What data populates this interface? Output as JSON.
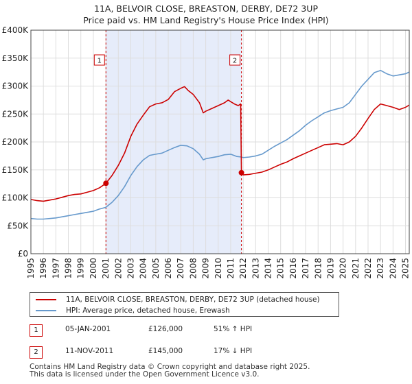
{
  "chart_data": {
    "type": "line",
    "title": [
      "11A, BELVOIR CLOSE, BREASTON, DERBY, DE72 3UP",
      "Price paid vs. HM Land Registry's House Price Index (HPI)"
    ],
    "ylim": [
      0,
      400000
    ],
    "yticks": [
      0,
      50000,
      100000,
      150000,
      200000,
      250000,
      300000,
      350000,
      400000
    ],
    "ytick_labels": [
      "£0",
      "£50K",
      "£100K",
      "£150K",
      "£200K",
      "£250K",
      "£300K",
      "£350K",
      "£400K"
    ],
    "xlim": [
      1995.0,
      2025.3
    ],
    "xticks": [
      1995,
      1996,
      1997,
      1998,
      1999,
      2000,
      2001,
      2002,
      2003,
      2004,
      2005,
      2006,
      2007,
      2008,
      2009,
      2010,
      2011,
      2012,
      2013,
      2014,
      2015,
      2016,
      2017,
      2018,
      2019,
      2020,
      2021,
      2022,
      2023,
      2024,
      2025
    ],
    "grid": true,
    "shaded_period": [
      2001.01,
      2011.86
    ],
    "series": [
      {
        "name": "11A, BELVOIR CLOSE, BREASTON, DERBY, DE72 3UP (detached house)",
        "color": "#cc0000",
        "x": [
          1995.0,
          1995.5,
          1996.0,
          1996.5,
          1997.0,
          1997.5,
          1998.0,
          1998.5,
          1999.0,
          1999.5,
          2000.0,
          2000.5,
          2001.01,
          2001.5,
          2002.0,
          2002.5,
          2003.0,
          2003.5,
          2004.0,
          2004.5,
          2005.0,
          2005.5,
          2006.0,
          2006.5,
          2007.0,
          2007.3,
          2007.6,
          2008.0,
          2008.5,
          2008.8,
          2009.0,
          2009.5,
          2010.0,
          2010.5,
          2010.8,
          2011.0,
          2011.3,
          2011.6,
          2011.8,
          2011.86,
          2012.0,
          2012.5,
          2013.0,
          2013.5,
          2014.0,
          2014.5,
          2015.0,
          2015.5,
          2016.0,
          2016.5,
          2017.0,
          2017.5,
          2018.0,
          2018.5,
          2019.0,
          2019.5,
          2020.0,
          2020.5,
          2021.0,
          2021.5,
          2022.0,
          2022.5,
          2023.0,
          2023.5,
          2024.0,
          2024.5,
          2025.0,
          2025.3
        ],
        "values": [
          97000,
          95000,
          94000,
          96000,
          98000,
          101000,
          104000,
          106000,
          107000,
          110000,
          113000,
          118000,
          126000,
          140000,
          158000,
          180000,
          210000,
          232000,
          248000,
          263000,
          268000,
          270000,
          276000,
          290000,
          296000,
          299000,
          292000,
          285000,
          270000,
          252000,
          255000,
          260000,
          265000,
          270000,
          275000,
          272000,
          268000,
          265000,
          268000,
          145000,
          141000,
          142000,
          144000,
          146000,
          150000,
          155000,
          160000,
          164000,
          170000,
          175000,
          180000,
          185000,
          190000,
          195000,
          196000,
          197000,
          195000,
          200000,
          210000,
          225000,
          242000,
          258000,
          268000,
          265000,
          262000,
          258000,
          262000,
          266000
        ]
      },
      {
        "name": "HPI: Average price, detached house, Erewash",
        "color": "#6699cc",
        "x": [
          1995.0,
          1995.5,
          1996.0,
          1996.5,
          1997.0,
          1997.5,
          1998.0,
          1998.5,
          1999.0,
          1999.5,
          2000.0,
          2000.5,
          2001.0,
          2001.5,
          2002.0,
          2002.5,
          2003.0,
          2003.5,
          2004.0,
          2004.5,
          2005.0,
          2005.5,
          2006.0,
          2006.5,
          2007.0,
          2007.5,
          2008.0,
          2008.5,
          2008.8,
          2009.0,
          2009.5,
          2010.0,
          2010.5,
          2011.0,
          2011.5,
          2011.86,
          2012.0,
          2012.5,
          2013.0,
          2013.5,
          2014.0,
          2014.5,
          2015.0,
          2015.5,
          2016.0,
          2016.5,
          2017.0,
          2017.5,
          2018.0,
          2018.5,
          2019.0,
          2019.5,
          2020.0,
          2020.5,
          2021.0,
          2021.5,
          2022.0,
          2022.5,
          2023.0,
          2023.5,
          2024.0,
          2024.5,
          2025.0,
          2025.3
        ],
        "values": [
          63000,
          62000,
          62000,
          63000,
          64000,
          66000,
          68000,
          70000,
          72000,
          74000,
          76000,
          80000,
          83000,
          92000,
          104000,
          120000,
          140000,
          156000,
          168000,
          176000,
          178000,
          180000,
          185000,
          190000,
          194000,
          193000,
          188000,
          178000,
          168000,
          170000,
          172000,
          174000,
          177000,
          178000,
          174000,
          173000,
          172000,
          173000,
          175000,
          178000,
          185000,
          192000,
          198000,
          204000,
          212000,
          220000,
          230000,
          238000,
          245000,
          252000,
          256000,
          259000,
          262000,
          270000,
          285000,
          300000,
          312000,
          324000,
          328000,
          322000,
          318000,
          320000,
          322000,
          325000
        ]
      }
    ],
    "sales": [
      {
        "id": "1",
        "date": "05-JAN-2001",
        "price": "£126,000",
        "hpi": "51% ↑ HPI",
        "x": 2001.01,
        "value": 126000
      },
      {
        "id": "2",
        "date": "11-NOV-2011",
        "price": "£145,000",
        "hpi": "17% ↓ HPI",
        "x": 2011.86,
        "value": 145000
      }
    ]
  },
  "legend": {
    "property_label": "11A, BELVOIR CLOSE, BREASTON, DERBY, DE72 3UP (detached house)",
    "hpi_label": "HPI: Average price, detached house, Erewash"
  },
  "footer": {
    "line1": "Contains HM Land Registry data © Crown copyright and database right 2025.",
    "line2": "This data is licensed under the Open Government Licence v3.0."
  }
}
